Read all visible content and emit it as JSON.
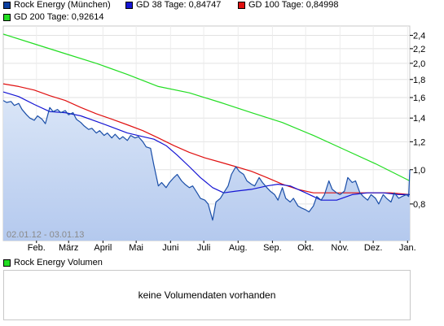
{
  "legend": {
    "price": {
      "label": "Rock Energy (München)",
      "color": "#0b3fa0"
    },
    "gd38": {
      "label": "GD 38 Tage: 0,84747",
      "color": "#1515d4"
    },
    "gd100": {
      "label": "GD 100 Tage: 0,84998",
      "color": "#e01010"
    },
    "gd200": {
      "label": "GD 200 Tage: 0,92614",
      "color": "#22dd22"
    }
  },
  "date_range": "02.01.12 - 03.01.13",
  "volume": {
    "legend_label": "Rock Energy Volumen",
    "legend_color": "#22dd22",
    "no_data_text": "keine Volumendaten vorhanden"
  },
  "chart_data": {
    "type": "line",
    "scale": "log",
    "ylim": [
      0.63,
      2.55
    ],
    "y_ticks": [
      {
        "value": 2.4,
        "label": "2,4"
      },
      {
        "value": 2.2,
        "label": "2,2"
      },
      {
        "value": 2.0,
        "label": "2,0"
      },
      {
        "value": 1.8,
        "label": "1,8"
      },
      {
        "value": 1.6,
        "label": "1,6"
      },
      {
        "value": 1.4,
        "label": "1,4"
      },
      {
        "value": 1.2,
        "label": "1,2"
      },
      {
        "value": 1.0,
        "label": "1,0"
      },
      {
        "value": 0.8,
        "label": "0,8"
      }
    ],
    "x_ticks": [
      {
        "date": "2012-02-01",
        "label": "Feb."
      },
      {
        "date": "2012-03-01",
        "label": "März"
      },
      {
        "date": "2012-04-01",
        "label": "April"
      },
      {
        "date": "2012-05-01",
        "label": "Mai"
      },
      {
        "date": "2012-06-01",
        "label": "Juni"
      },
      {
        "date": "2012-07-01",
        "label": "Juli"
      },
      {
        "date": "2012-08-01",
        "label": "Aug."
      },
      {
        "date": "2012-09-01",
        "label": "Sep."
      },
      {
        "date": "2012-10-01",
        "label": "Okt."
      },
      {
        "date": "2012-11-01",
        "label": "Nov."
      },
      {
        "date": "2012-12-01",
        "label": "Dez."
      },
      {
        "date": "2013-01-01",
        "label": "Jan."
      }
    ],
    "x_range": [
      "2012-01-02",
      "2013-01-03"
    ],
    "grid": true,
    "series": [
      {
        "name": "Rock Energy (München)",
        "color": "#1a4ea8",
        "fill": true,
        "points": [
          [
            "2012-01-02",
            1.57
          ],
          [
            "2012-01-05",
            1.55
          ],
          [
            "2012-01-09",
            1.56
          ],
          [
            "2012-01-12",
            1.52
          ],
          [
            "2012-01-16",
            1.54
          ],
          [
            "2012-01-19",
            1.48
          ],
          [
            "2012-01-23",
            1.43
          ],
          [
            "2012-01-26",
            1.4
          ],
          [
            "2012-01-30",
            1.38
          ],
          [
            "2012-02-02",
            1.42
          ],
          [
            "2012-02-06",
            1.39
          ],
          [
            "2012-02-09",
            1.35
          ],
          [
            "2012-02-13",
            1.5
          ],
          [
            "2012-02-16",
            1.46
          ],
          [
            "2012-02-20",
            1.48
          ],
          [
            "2012-02-23",
            1.45
          ],
          [
            "2012-02-27",
            1.47
          ],
          [
            "2012-03-01",
            1.43
          ],
          [
            "2012-03-05",
            1.45
          ],
          [
            "2012-03-08",
            1.39
          ],
          [
            "2012-03-12",
            1.36
          ],
          [
            "2012-03-15",
            1.33
          ],
          [
            "2012-03-19",
            1.3
          ],
          [
            "2012-03-22",
            1.31
          ],
          [
            "2012-03-26",
            1.27
          ],
          [
            "2012-03-29",
            1.29
          ],
          [
            "2012-04-02",
            1.25
          ],
          [
            "2012-04-05",
            1.27
          ],
          [
            "2012-04-09",
            1.23
          ],
          [
            "2012-04-12",
            1.26
          ],
          [
            "2012-04-16",
            1.22
          ],
          [
            "2012-04-19",
            1.24
          ],
          [
            "2012-04-23",
            1.21
          ],
          [
            "2012-04-26",
            1.25
          ],
          [
            "2012-04-30",
            1.23
          ],
          [
            "2012-05-03",
            1.24
          ],
          [
            "2012-05-07",
            1.2
          ],
          [
            "2012-05-10",
            1.16
          ],
          [
            "2012-05-14",
            1.15
          ],
          [
            "2012-05-17",
            1.03
          ],
          [
            "2012-05-21",
            0.9
          ],
          [
            "2012-05-24",
            0.92
          ],
          [
            "2012-05-28",
            0.89
          ],
          [
            "2012-05-31",
            0.92
          ],
          [
            "2012-06-04",
            0.95
          ],
          [
            "2012-06-07",
            0.97
          ],
          [
            "2012-06-11",
            0.93
          ],
          [
            "2012-06-14",
            0.91
          ],
          [
            "2012-06-18",
            0.89
          ],
          [
            "2012-06-21",
            0.9
          ],
          [
            "2012-06-25",
            0.86
          ],
          [
            "2012-06-28",
            0.83
          ],
          [
            "2012-07-02",
            0.82
          ],
          [
            "2012-07-05",
            0.8
          ],
          [
            "2012-07-09",
            0.72
          ],
          [
            "2012-07-12",
            0.81
          ],
          [
            "2012-07-16",
            0.83
          ],
          [
            "2012-07-19",
            0.86
          ],
          [
            "2012-07-23",
            0.9
          ],
          [
            "2012-07-26",
            0.97
          ],
          [
            "2012-07-30",
            1.02
          ],
          [
            "2012-08-02",
            0.99
          ],
          [
            "2012-08-06",
            0.97
          ],
          [
            "2012-08-09",
            0.93
          ],
          [
            "2012-08-13",
            0.91
          ],
          [
            "2012-08-16",
            0.9
          ],
          [
            "2012-08-20",
            0.95
          ],
          [
            "2012-08-23",
            0.92
          ],
          [
            "2012-08-27",
            0.89
          ],
          [
            "2012-08-30",
            0.87
          ],
          [
            "2012-09-03",
            0.85
          ],
          [
            "2012-09-06",
            0.82
          ],
          [
            "2012-09-10",
            0.89
          ],
          [
            "2012-09-13",
            0.83
          ],
          [
            "2012-09-17",
            0.81
          ],
          [
            "2012-09-20",
            0.83
          ],
          [
            "2012-09-24",
            0.79
          ],
          [
            "2012-09-27",
            0.78
          ],
          [
            "2012-10-01",
            0.77
          ],
          [
            "2012-10-04",
            0.76
          ],
          [
            "2012-10-08",
            0.79
          ],
          [
            "2012-10-11",
            0.84
          ],
          [
            "2012-10-15",
            0.82
          ],
          [
            "2012-10-18",
            0.85
          ],
          [
            "2012-10-22",
            0.93
          ],
          [
            "2012-10-25",
            0.88
          ],
          [
            "2012-10-29",
            0.86
          ],
          [
            "2012-11-01",
            0.85
          ],
          [
            "2012-11-05",
            0.87
          ],
          [
            "2012-11-08",
            0.95
          ],
          [
            "2012-11-12",
            0.92
          ],
          [
            "2012-11-15",
            0.93
          ],
          [
            "2012-11-19",
            0.86
          ],
          [
            "2012-11-22",
            0.84
          ],
          [
            "2012-11-26",
            0.82
          ],
          [
            "2012-11-29",
            0.85
          ],
          [
            "2012-12-03",
            0.83
          ],
          [
            "2012-12-06",
            0.8
          ],
          [
            "2012-12-10",
            0.85
          ],
          [
            "2012-12-13",
            0.83
          ],
          [
            "2012-12-17",
            0.81
          ],
          [
            "2012-12-20",
            0.86
          ],
          [
            "2012-12-24",
            0.83
          ],
          [
            "2012-12-27",
            0.84
          ],
          [
            "2012-12-31",
            0.85
          ],
          [
            "2013-01-02",
            0.84
          ],
          [
            "2013-01-03",
            1.0
          ]
        ]
      },
      {
        "name": "GD 38 Tage: 0,84747",
        "color": "#1515d4",
        "points": [
          [
            "2012-01-02",
            1.66
          ],
          [
            "2012-01-16",
            1.61
          ],
          [
            "2012-01-30",
            1.53
          ],
          [
            "2012-02-13",
            1.46
          ],
          [
            "2012-02-27",
            1.45
          ],
          [
            "2012-03-12",
            1.42
          ],
          [
            "2012-03-26",
            1.37
          ],
          [
            "2012-04-09",
            1.32
          ],
          [
            "2012-04-23",
            1.27
          ],
          [
            "2012-05-07",
            1.24
          ],
          [
            "2012-05-17",
            1.22
          ],
          [
            "2012-05-28",
            1.17
          ],
          [
            "2012-06-07",
            1.1
          ],
          [
            "2012-06-18",
            1.02
          ],
          [
            "2012-06-28",
            0.95
          ],
          [
            "2012-07-09",
            0.89
          ],
          [
            "2012-07-19",
            0.86
          ],
          [
            "2012-07-30",
            0.87
          ],
          [
            "2012-08-13",
            0.88
          ],
          [
            "2012-08-27",
            0.9
          ],
          [
            "2012-09-06",
            0.91
          ],
          [
            "2012-09-17",
            0.9
          ],
          [
            "2012-10-01",
            0.86
          ],
          [
            "2012-10-15",
            0.82
          ],
          [
            "2012-10-29",
            0.82
          ],
          [
            "2012-11-12",
            0.85
          ],
          [
            "2012-11-26",
            0.86
          ],
          [
            "2012-12-10",
            0.86
          ],
          [
            "2012-12-24",
            0.85
          ],
          [
            "2013-01-03",
            0.85
          ]
        ]
      },
      {
        "name": "GD 100 Tage: 0,84998",
        "color": "#e01010",
        "points": [
          [
            "2012-01-02",
            1.75
          ],
          [
            "2012-01-16",
            1.72
          ],
          [
            "2012-01-30",
            1.68
          ],
          [
            "2012-02-13",
            1.62
          ],
          [
            "2012-02-27",
            1.57
          ],
          [
            "2012-03-12",
            1.5
          ],
          [
            "2012-03-26",
            1.44
          ],
          [
            "2012-04-09",
            1.39
          ],
          [
            "2012-04-23",
            1.34
          ],
          [
            "2012-05-07",
            1.29
          ],
          [
            "2012-05-21",
            1.23
          ],
          [
            "2012-06-04",
            1.17
          ],
          [
            "2012-06-18",
            1.12
          ],
          [
            "2012-07-02",
            1.08
          ],
          [
            "2012-07-16",
            1.05
          ],
          [
            "2012-07-30",
            1.02
          ],
          [
            "2012-08-13",
            0.99
          ],
          [
            "2012-08-27",
            0.95
          ],
          [
            "2012-09-10",
            0.91
          ],
          [
            "2012-09-24",
            0.88
          ],
          [
            "2012-10-08",
            0.86
          ],
          [
            "2012-10-22",
            0.86
          ],
          [
            "2012-11-05",
            0.86
          ],
          [
            "2012-11-19",
            0.86
          ],
          [
            "2012-12-03",
            0.86
          ],
          [
            "2012-12-17",
            0.86
          ],
          [
            "2013-01-03",
            0.85
          ]
        ]
      },
      {
        "name": "GD 200 Tage: 0,92614",
        "color": "#22dd22",
        "points": [
          [
            "2012-01-02",
            2.42
          ],
          [
            "2012-01-30",
            2.27
          ],
          [
            "2012-02-27",
            2.13
          ],
          [
            "2012-03-26",
            2.0
          ],
          [
            "2012-04-23",
            1.86
          ],
          [
            "2012-05-21",
            1.72
          ],
          [
            "2012-06-18",
            1.65
          ],
          [
            "2012-07-16",
            1.55
          ],
          [
            "2012-08-13",
            1.45
          ],
          [
            "2012-09-10",
            1.36
          ],
          [
            "2012-10-08",
            1.25
          ],
          [
            "2012-11-05",
            1.14
          ],
          [
            "2012-12-03",
            1.04
          ],
          [
            "2013-01-03",
            0.93
          ]
        ]
      }
    ]
  }
}
